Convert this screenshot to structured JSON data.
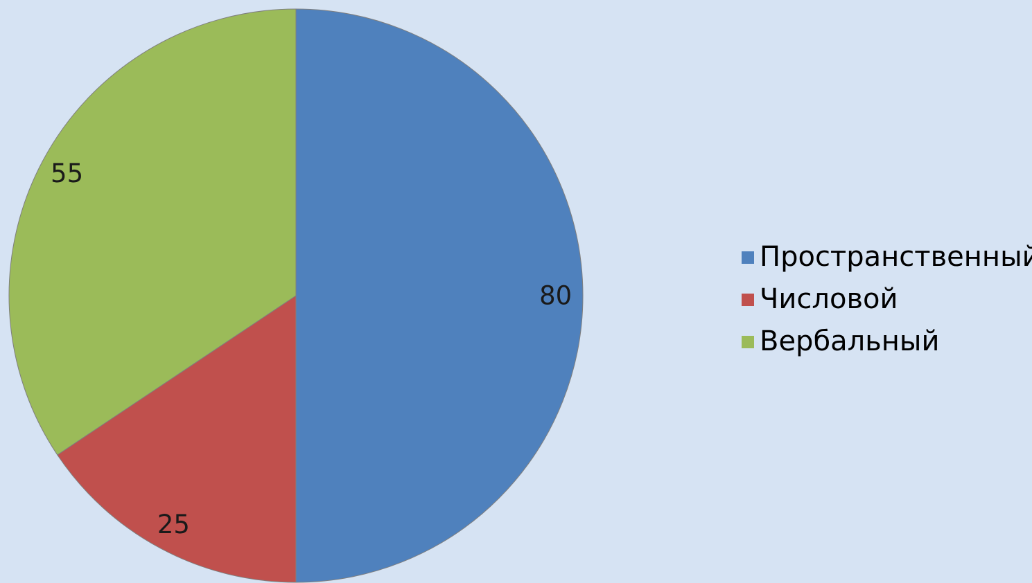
{
  "chart_data": {
    "type": "pie",
    "title": "",
    "slices": [
      {
        "label": "Пространственный",
        "value": 80,
        "data_label": "80",
        "color": "#4f81bd"
      },
      {
        "label": "Числовой",
        "value": 25,
        "data_label": "25",
        "color": "#c0504d"
      },
      {
        "label": "Вербальный",
        "value": 55,
        "data_label": "55",
        "color": "#9bbb59"
      }
    ],
    "legend": {
      "placement": "right",
      "entries": [
        "Пространственный",
        "Числовой",
        "Вербальный"
      ]
    }
  },
  "colors": {
    "background": "#d6e3f3",
    "slice_border": "#7f7f7f"
  }
}
